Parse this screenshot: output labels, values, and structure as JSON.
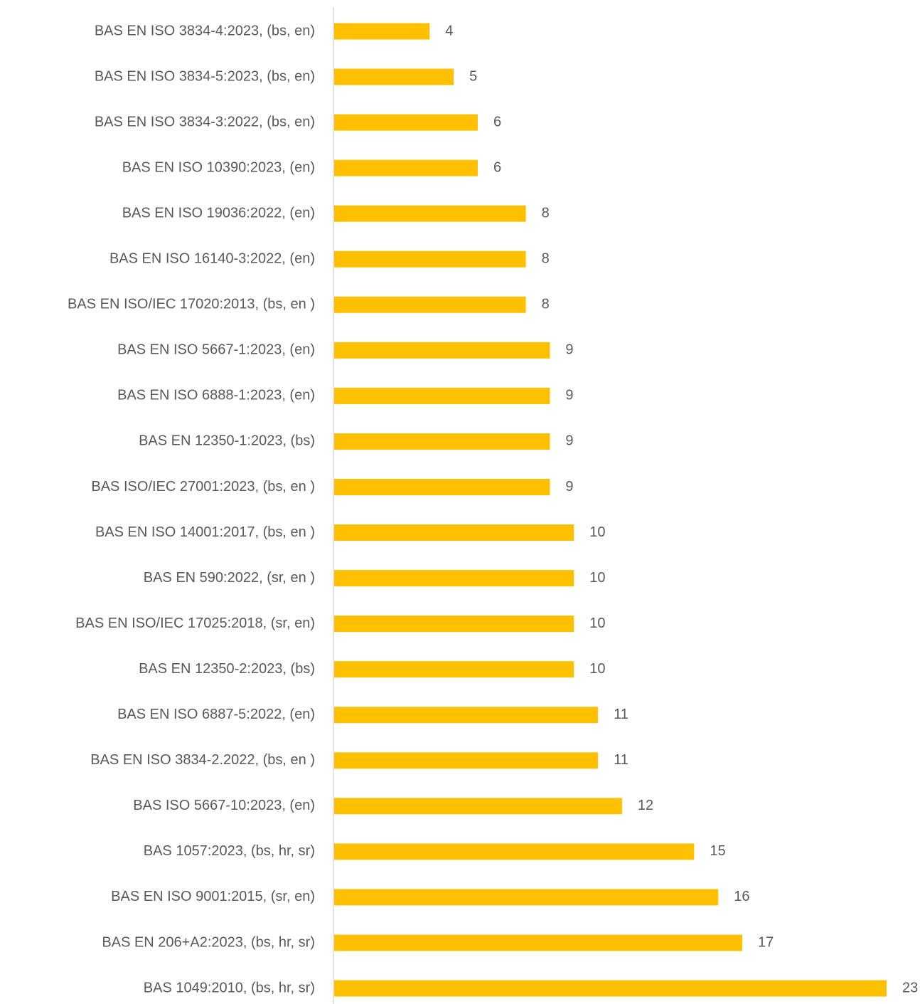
{
  "chart_data": {
    "type": "barh",
    "categories": [
      "BAS EN ISO 3834-4:2023, (bs, en)",
      "BAS EN ISO 3834-5:2023, (bs, en)",
      "BAS EN ISO 3834-3:2022, (bs, en)",
      "BAS EN ISO 10390:2023, (en)",
      "BAS EN ISO 19036:2022, (en)",
      "BAS EN ISO 16140-3:2022, (en)",
      "BAS EN ISO/IEC 17020:2013, (bs, en )",
      "BAS EN ISO 5667-1:2023, (en)",
      "BAS EN ISO 6888-1:2023, (en)",
      "BAS EN 12350-1:2023, (bs)",
      "BAS ISO/IEC 27001:2023, (bs, en )",
      "BAS EN ISO 14001:2017, (bs, en )",
      "BAS EN 590:2022, (sr, en )",
      "BAS EN ISO/IEC 17025:2018, (sr, en)",
      "BAS EN 12350-2:2023, (bs)",
      "BAS EN ISO 6887-5:2022, (en)",
      "BAS EN ISO 3834-2.2022, (bs, en )",
      "BAS ISO 5667-10:2023, (en)",
      "BAS 1057:2023, (bs, hr, sr)",
      "BAS EN ISO 9001:2015, (sr, en)",
      "BAS EN 206+A2:2023, (bs, hr, sr)",
      "BAS 1049:2010, (bs, hr, sr)"
    ],
    "values": [
      4,
      5,
      6,
      6,
      8,
      8,
      8,
      9,
      9,
      9,
      9,
      10,
      10,
      10,
      10,
      11,
      11,
      12,
      15,
      16,
      17,
      23
    ],
    "color": "#ffc000"
  }
}
